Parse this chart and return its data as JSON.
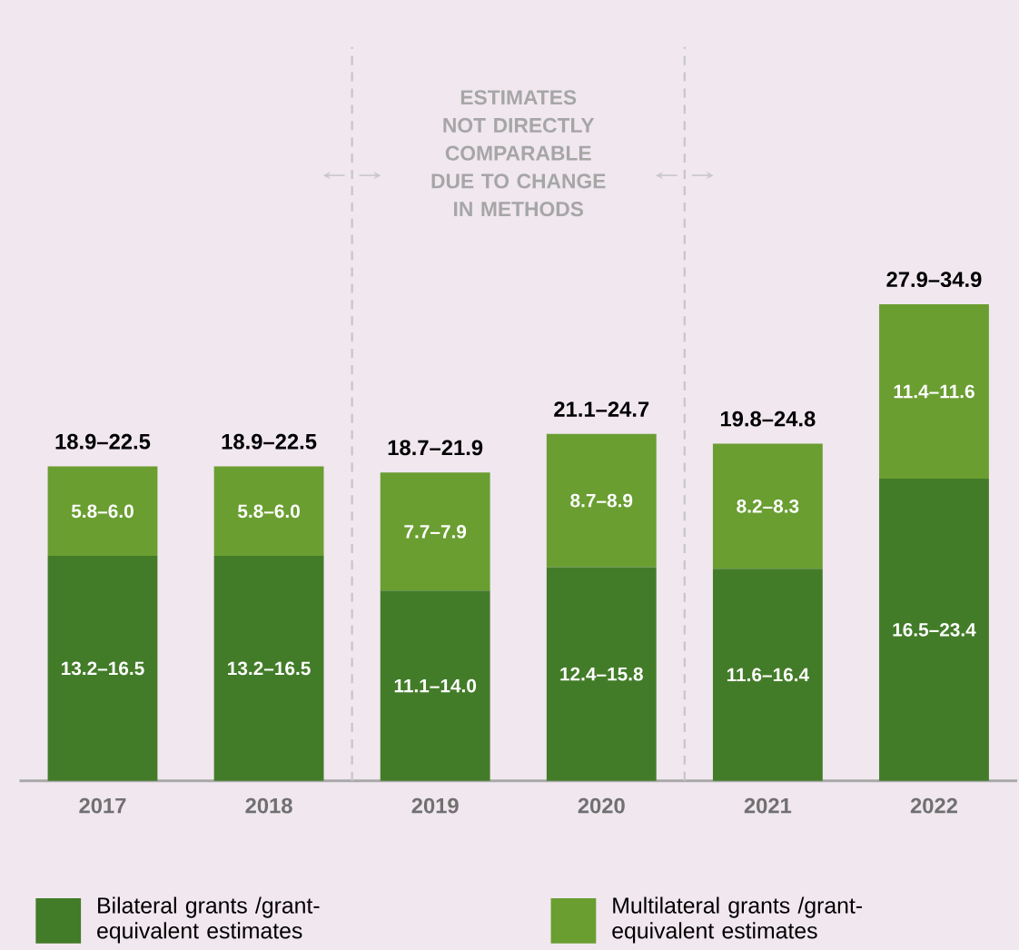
{
  "chart_data": {
    "type": "bar",
    "stacked": true,
    "categories": [
      "2017",
      "2018",
      "2019",
      "2020",
      "2021",
      "2022"
    ],
    "series": [
      {
        "name": "Bilateral grants /grant-equivalent estimates",
        "color": "#437c29",
        "values": [
          14.85,
          14.85,
          12.55,
          14.1,
          14.0,
          19.95
        ],
        "value_labels": [
          "13.2–16.5",
          "13.2–16.5",
          "11.1–14.0",
          "12.4–15.8",
          "11.6–16.4",
          "16.5–23.4"
        ]
      },
      {
        "name": "Multilateral grants /grant-equivalent estimates",
        "color": "#6a9e31",
        "values": [
          5.9,
          5.9,
          7.8,
          8.8,
          8.25,
          11.5
        ],
        "value_labels": [
          "5.8–6.0",
          "5.8–6.0",
          "7.7–7.9",
          "8.7–8.9",
          "8.2–8.3",
          "11.4–11.6"
        ]
      }
    ],
    "totals": [
      "18.9–22.5",
      "18.9–22.5",
      "18.7–21.9",
      "21.1–24.7",
      "19.8–24.8",
      "27.9–34.9"
    ],
    "annotations": [
      "ESTIMATES NOT DIRECTLY COMPARABLE DUE TO CHANGE IN METHODS"
    ],
    "legend": "bottom"
  }
}
